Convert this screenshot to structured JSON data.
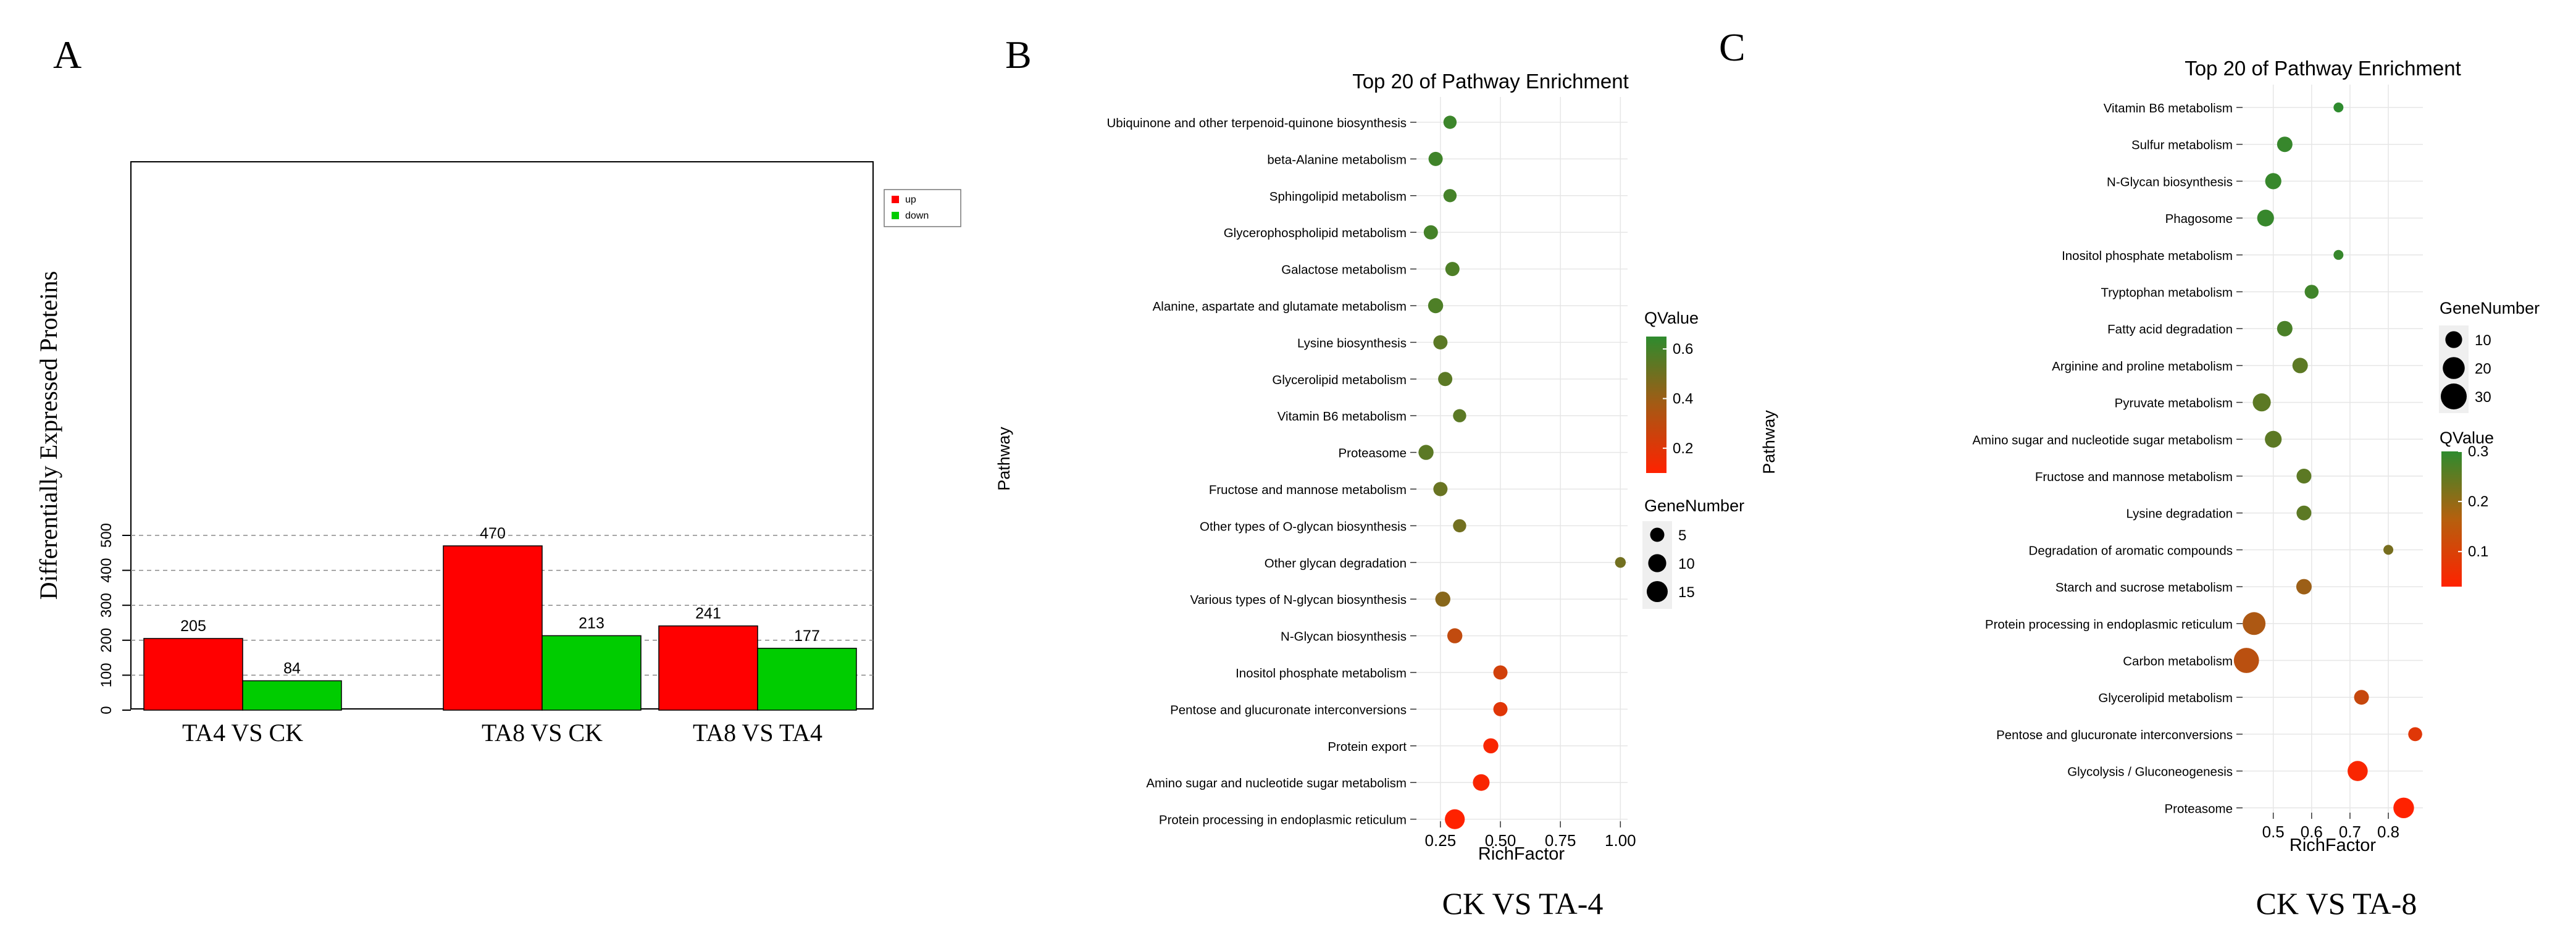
{
  "figure": {
    "panel_labels": [
      "A",
      "B",
      "C"
    ]
  },
  "colors": {
    "up": "#ff0000",
    "down": "#00cc00",
    "panel_bg": "#ffffff",
    "grid": "#e6e6e6",
    "qvalue_low": "#ff2200",
    "qvalue_high": "#2e8b2e"
  },
  "chart_data": [
    {
      "type": "bar",
      "panel": "A",
      "title": "",
      "xlabel": "",
      "ylabel": "Differentially Expressed Proteins",
      "categories": [
        "TA4 VS CK",
        "TA8 VS CK",
        "TA8 VS TA4"
      ],
      "series": [
        {
          "name": "up",
          "values": [
            205,
            470,
            241
          ]
        },
        {
          "name": "down",
          "values": [
            84,
            213,
            177
          ]
        }
      ],
      "ylim": [
        0,
        550
      ],
      "yticks": [
        0,
        100,
        200,
        300,
        400,
        500
      ],
      "grid": "horizontal dashed",
      "legend_position": "top-right"
    },
    {
      "type": "scatter",
      "panel": "B",
      "title": "Top 20 of Pathway Enrichment",
      "caption": "CK VS TA-4",
      "xlabel": "RichFactor",
      "ylabel": "Pathway",
      "xlim": [
        0.15,
        1.03
      ],
      "xticks": [
        "0.25",
        "0.50",
        "0.75",
        "1.00"
      ],
      "xtick_values": [
        0.25,
        0.5,
        0.75,
        1.0
      ],
      "color_legend": {
        "title": "QValue",
        "ticks": [
          "0.6",
          "0.4",
          "0.2"
        ],
        "tick_values": [
          0.6,
          0.4,
          0.2
        ],
        "range": [
          0.1,
          0.65
        ]
      },
      "size_legend": {
        "title": "GeneNumber",
        "ticks": [
          "5",
          "10",
          "15"
        ],
        "tick_values": [
          5,
          10,
          15
        ]
      },
      "points": [
        {
          "pathway": "Ubiquinone and other terpenoid-quinone biosynthesis",
          "rich": 0.29,
          "genes": 4,
          "q": 0.62
        },
        {
          "pathway": "beta-Alanine metabolism",
          "rich": 0.23,
          "genes": 5,
          "q": 0.61
        },
        {
          "pathway": "Sphingolipid metabolism",
          "rich": 0.29,
          "genes": 4,
          "q": 0.6
        },
        {
          "pathway": "Glycerophospholipid metabolism",
          "rich": 0.21,
          "genes": 5,
          "q": 0.6
        },
        {
          "pathway": "Galactose metabolism",
          "rich": 0.3,
          "genes": 5,
          "q": 0.58
        },
        {
          "pathway": "Alanine, aspartate and glutamate metabolism",
          "rich": 0.23,
          "genes": 6,
          "q": 0.58
        },
        {
          "pathway": "Lysine biosynthesis",
          "rich": 0.25,
          "genes": 5,
          "q": 0.55
        },
        {
          "pathway": "Glycerolipid metabolism",
          "rich": 0.27,
          "genes": 5,
          "q": 0.55
        },
        {
          "pathway": "Vitamin B6 metabolism",
          "rich": 0.33,
          "genes": 4,
          "q": 0.55
        },
        {
          "pathway": "Proteasome",
          "rich": 0.19,
          "genes": 6,
          "q": 0.55
        },
        {
          "pathway": "Fructose and mannose metabolism",
          "rich": 0.25,
          "genes": 5,
          "q": 0.52
        },
        {
          "pathway": "Other types of O-glycan biosynthesis",
          "rich": 0.33,
          "genes": 4,
          "q": 0.5
        },
        {
          "pathway": "Other glycan degradation",
          "rich": 1.0,
          "genes": 2,
          "q": 0.5
        },
        {
          "pathway": "Various types of N-glycan biosynthesis",
          "rich": 0.26,
          "genes": 6,
          "q": 0.45
        },
        {
          "pathway": "N-Glycan biosynthesis",
          "rich": 0.31,
          "genes": 6,
          "q": 0.3
        },
        {
          "pathway": "Inositol phosphate metabolism",
          "rich": 0.5,
          "genes": 5,
          "q": 0.25
        },
        {
          "pathway": "Pentose and glucuronate interconversions",
          "rich": 0.5,
          "genes": 5,
          "q": 0.2
        },
        {
          "pathway": "Protein export",
          "rich": 0.46,
          "genes": 6,
          "q": 0.12
        },
        {
          "pathway": "Amino sugar and nucleotide sugar metabolism",
          "rich": 0.42,
          "genes": 8,
          "q": 0.12
        },
        {
          "pathway": "Protein processing in endoplasmic reticulum",
          "rich": 0.31,
          "genes": 13,
          "q": 0.1
        }
      ]
    },
    {
      "type": "scatter",
      "panel": "C",
      "title": "Top 20 of Pathway Enrichment",
      "caption": "CK VS TA-8",
      "xlabel": "RichFactor",
      "ylabel": "Pathway",
      "xlim": [
        0.42,
        0.89
      ],
      "xticks": [
        "0.5",
        "0.6",
        "0.7",
        "0.8"
      ],
      "xtick_values": [
        0.5,
        0.6,
        0.7,
        0.8
      ],
      "color_legend": {
        "title": "QValue",
        "ticks": [
          "0.3",
          "0.2",
          "0.1"
        ],
        "tick_values": [
          0.3,
          0.2,
          0.1
        ],
        "range": [
          0.03,
          0.3
        ]
      },
      "size_legend": {
        "title": "GeneNumber",
        "ticks": [
          "10",
          "20",
          "30"
        ],
        "tick_values": [
          10,
          20,
          30
        ]
      },
      "points": [
        {
          "pathway": "Vitamin B6 metabolism",
          "rich": 0.67,
          "genes": 2,
          "q": 0.3
        },
        {
          "pathway": "Sulfur metabolism",
          "rich": 0.53,
          "genes": 8,
          "q": 0.29
        },
        {
          "pathway": "N-Glycan biosynthesis",
          "rich": 0.5,
          "genes": 9,
          "q": 0.29
        },
        {
          "pathway": "Phagosome",
          "rich": 0.48,
          "genes": 10,
          "q": 0.29
        },
        {
          "pathway": "Inositol phosphate metabolism",
          "rich": 0.67,
          "genes": 2,
          "q": 0.29
        },
        {
          "pathway": "Tryptophan metabolism",
          "rich": 0.6,
          "genes": 6,
          "q": 0.28
        },
        {
          "pathway": "Fatty acid degradation",
          "rich": 0.53,
          "genes": 8,
          "q": 0.27
        },
        {
          "pathway": "Arginine and proline metabolism",
          "rich": 0.57,
          "genes": 8,
          "q": 0.25
        },
        {
          "pathway": "Pyruvate metabolism",
          "rich": 0.47,
          "genes": 12,
          "q": 0.25
        },
        {
          "pathway": "Amino sugar and nucleotide sugar metabolism",
          "rich": 0.5,
          "genes": 10,
          "q": 0.25
        },
        {
          "pathway": "Fructose and mannose metabolism",
          "rich": 0.58,
          "genes": 7,
          "q": 0.25
        },
        {
          "pathway": "Lysine degradation",
          "rich": 0.58,
          "genes": 7,
          "q": 0.25
        },
        {
          "pathway": "Degradation of aromatic compounds",
          "rich": 0.8,
          "genes": 2,
          "q": 0.22
        },
        {
          "pathway": "Starch and sucrose metabolism",
          "rich": 0.58,
          "genes": 8,
          "q": 0.18
        },
        {
          "pathway": "Protein processing in endoplasmic reticulum",
          "rich": 0.45,
          "genes": 22,
          "q": 0.16
        },
        {
          "pathway": "Carbon metabolism",
          "rich": 0.43,
          "genes": 28,
          "q": 0.14
        },
        {
          "pathway": "Glycerolipid metabolism",
          "rich": 0.73,
          "genes": 7,
          "q": 0.12
        },
        {
          "pathway": "Pentose and glucuronate interconversions",
          "rich": 0.87,
          "genes": 6,
          "q": 0.08
        },
        {
          "pathway": "Glycolysis / Gluconeogenesis",
          "rich": 0.72,
          "genes": 16,
          "q": 0.04
        },
        {
          "pathway": "Proteasome",
          "rich": 0.84,
          "genes": 17,
          "q": 0.03
        }
      ]
    }
  ]
}
